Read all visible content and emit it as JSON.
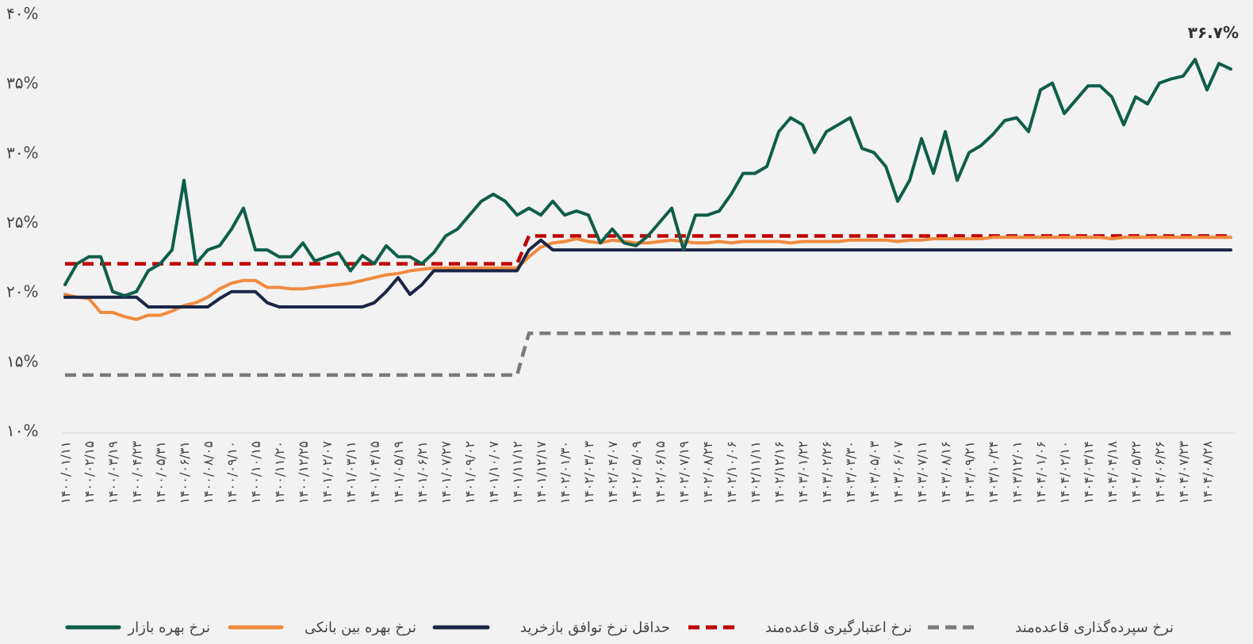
{
  "chart_data": {
    "type": "line",
    "annotation": "۳۶.۷%",
    "categories": [
      "۱۴۰۰/۰۱/۱۱",
      null,
      "۱۴۰۰/۰۲/۱۵",
      null,
      "۱۴۰۰/۰۳/۱۹",
      null,
      "۱۴۰۰/۰۴/۲۳",
      null,
      "۱۴۰۰/۰۵/۳۱",
      null,
      "۱۴۰۰/۰۶/۳۱",
      null,
      "۱۴۰۰/۰۸/۰۵",
      null,
      "۱۴۰۰/۰۹/۱۰",
      null,
      "۱۴۰۰/۱۰/۱۵",
      null,
      "۱۴۰۰/۱۱/۲۰",
      null,
      "۱۴۰۰/۱۲/۲۵",
      null,
      "۱۴۰۱/۰۲/۰۷",
      null,
      "۱۴۰۱/۰۳/۱۱",
      null,
      "۱۴۰۱/۰۴/۱۵",
      null,
      "۱۴۰۱/۰۵/۱۹",
      null,
      "۱۴۰۱/۰۶/۲۱",
      null,
      "۱۴۰۱/۰۷/۲۷",
      null,
      "۱۴۰۱/۰۹/۰۲",
      null,
      "۱۴۰۱/۱۰/۰۷",
      null,
      "۱۴۰۱/۱۱/۱۲",
      null,
      "۱۴۰۱/۱۲/۱۷",
      null,
      "۱۴۰۲/۰۱/۳۰",
      null,
      "۱۴۰۲/۰۳/۰۳",
      null,
      "۱۴۰۲/۰۴/۰۷",
      null,
      "۱۴۰۲/۰۵/۰۹",
      null,
      "۱۴۰۲/۰۶/۱۵",
      null,
      "۱۴۰۲/۰۷/۱۹",
      null,
      "۱۴۰۲/۰۸/۲۴",
      null,
      "۱۴۰۲/۱۰/۰۶",
      null,
      "۱۴۰۲/۱۱/۱۱",
      null,
      "۱۴۰۲/۱۲/۱۶",
      null,
      "۱۴۰۳/۰۱/۲۲",
      null,
      "۱۴۰۳/۰۲/۲۶",
      null,
      "۱۴۰۳/۰۳/۳۰",
      null,
      "۱۴۰۳/۰۵/۰۳",
      null,
      "۱۴۰۳/۰۶/۰۷",
      null,
      "۱۴۰۳/۰۷/۱۱",
      null,
      "۱۴۰۳/۰۸/۱۶",
      null,
      "۱۴۰۳/۰۹/۲۱",
      null,
      "۱۴۰۳/۱۰/۲۴",
      null,
      "۱۴۰۳/۱۲/۰۱",
      null,
      "۱۴۰۴/۰۱/۰۶",
      null,
      "۱۴۰۴/۰۲/۱۰",
      null,
      "۱۴۰۴/۰۳/۱۴",
      null,
      "۱۴۰۴/۰۴/۱۸",
      null,
      "۱۴۰۴/۰۵/۲۲",
      null,
      "۱۴۰۴/۰۶/۲۶",
      null,
      "۱۴۰۴/۰۷/۲۳",
      null,
      "۱۴۰۴/۰۸/۲۸",
      null,
      null
    ],
    "series": [
      {
        "name": "نرخ بهره بازار",
        "color": "#0e5e4a",
        "values": [
          20.5,
          22,
          22.5,
          22.5,
          20,
          19.7,
          20,
          21.5,
          22,
          23,
          28,
          22,
          23,
          23.3,
          24.5,
          26,
          23,
          23,
          22.5,
          22.5,
          23.5,
          22.2,
          22.5,
          22.8,
          21.5,
          22.6,
          22,
          23.3,
          22.5,
          22.5,
          22,
          22.8,
          24,
          24.5,
          25.5,
          26.5,
          27,
          26.5,
          25.5,
          26,
          25.5,
          26.5,
          25.5,
          25.8,
          25.5,
          23.5,
          24.5,
          23.5,
          23.3,
          24,
          25,
          26,
          23,
          25.5,
          25.5,
          25.8,
          27,
          28.5,
          28.5,
          29,
          31.5,
          32.5,
          32,
          30,
          31.5,
          32,
          32.5,
          30.3,
          30,
          29,
          26.5,
          28,
          31,
          28.5,
          31.5,
          28,
          30,
          30.5,
          31.3,
          32.3,
          32.5,
          31.5,
          34.5,
          35,
          32.8,
          33.8,
          34.8,
          34.8,
          34,
          32,
          34,
          33.5,
          35,
          35.3,
          35.5,
          36.7,
          34.5,
          36.4,
          36
        ]
      },
      {
        "name": "نرخ بهره بین بانکی",
        "color": "#f08a3e",
        "values": [
          19.8,
          19.6,
          19.5,
          18.5,
          18.5,
          18.2,
          18,
          18.3,
          18.3,
          18.6,
          19,
          19.2,
          19.6,
          20.2,
          20.6,
          20.8,
          20.8,
          20.3,
          20.3,
          20.2,
          20.2,
          20.3,
          20.4,
          20.5,
          20.6,
          20.8,
          21,
          21.2,
          21.3,
          21.5,
          21.6,
          21.7,
          21.7,
          21.7,
          21.7,
          21.7,
          21.7,
          21.7,
          21.7,
          22.5,
          23.2,
          23.5,
          23.6,
          23.8,
          23.6,
          23.5,
          23.7,
          23.6,
          23.5,
          23.5,
          23.6,
          23.7,
          23.6,
          23.5,
          23.5,
          23.6,
          23.5,
          23.6,
          23.6,
          23.6,
          23.6,
          23.5,
          23.6,
          23.6,
          23.6,
          23.6,
          23.7,
          23.7,
          23.7,
          23.7,
          23.6,
          23.7,
          23.7,
          23.8,
          23.8,
          23.8,
          23.8,
          23.8,
          23.9,
          23.9,
          23.9,
          23.9,
          23.9,
          23.9,
          23.9,
          23.9,
          23.9,
          23.9,
          23.8,
          23.9,
          23.9,
          23.9,
          23.9,
          23.9,
          23.9,
          23.9,
          23.9,
          23.9,
          23.9
        ]
      },
      {
        "name": "حداقل نرخ توافق بازخرید",
        "color": "#1b2545",
        "values": [
          19.6,
          19.6,
          19.6,
          19.6,
          19.6,
          19.6,
          19.6,
          18.9,
          18.9,
          18.9,
          18.9,
          18.9,
          18.9,
          19.5,
          20,
          20,
          20,
          19.2,
          18.9,
          18.9,
          18.9,
          18.9,
          18.9,
          18.9,
          18.9,
          18.9,
          19.2,
          20,
          21,
          19.8,
          20.5,
          21.5,
          21.5,
          21.5,
          21.5,
          21.5,
          21.5,
          21.5,
          21.5,
          23,
          23.7,
          23,
          23,
          23,
          23,
          23,
          23,
          23,
          23,
          23,
          23,
          23,
          23,
          23,
          23,
          23,
          23,
          23,
          23,
          23,
          23,
          23,
          23,
          23,
          23,
          23,
          23,
          23,
          23,
          23,
          23,
          23,
          23,
          23,
          23,
          23,
          23,
          23,
          23,
          23,
          23,
          23,
          23,
          23,
          23,
          23,
          23,
          23,
          23,
          23,
          23,
          23,
          23,
          23,
          23,
          23,
          23,
          23,
          23
        ]
      },
      {
        "name": "نرخ اعتبارگیری قاعده‌مند",
        "color": "#c00000",
        "dash": true,
        "values": [
          22,
          22,
          22,
          22,
          22,
          22,
          22,
          22,
          22,
          22,
          22,
          22,
          22,
          22,
          22,
          22,
          22,
          22,
          22,
          22,
          22,
          22,
          22,
          22,
          22,
          22,
          22,
          22,
          22,
          22,
          22,
          22,
          22,
          22,
          22,
          22,
          22,
          22,
          22,
          24,
          24,
          24,
          24,
          24,
          24,
          24,
          24,
          24,
          24,
          24,
          24,
          24,
          24,
          24,
          24,
          24,
          24,
          24,
          24,
          24,
          24,
          24,
          24,
          24,
          24,
          24,
          24,
          24,
          24,
          24,
          24,
          24,
          24,
          24,
          24,
          24,
          24,
          24,
          24,
          24,
          24,
          24,
          24,
          24,
          24,
          24,
          24,
          24,
          24,
          24,
          24,
          24,
          24,
          24,
          24,
          24,
          24,
          24,
          24
        ]
      },
      {
        "name": "نرخ سپرده‌گذاری قاعده‌مند",
        "color": "#7a7a7a",
        "dash": true,
        "values": [
          14,
          14,
          14,
          14,
          14,
          14,
          14,
          14,
          14,
          14,
          14,
          14,
          14,
          14,
          14,
          14,
          14,
          14,
          14,
          14,
          14,
          14,
          14,
          14,
          14,
          14,
          14,
          14,
          14,
          14,
          14,
          14,
          14,
          14,
          14,
          14,
          14,
          14,
          14,
          17,
          17,
          17,
          17,
          17,
          17,
          17,
          17,
          17,
          17,
          17,
          17,
          17,
          17,
          17,
          17,
          17,
          17,
          17,
          17,
          17,
          17,
          17,
          17,
          17,
          17,
          17,
          17,
          17,
          17,
          17,
          17,
          17,
          17,
          17,
          17,
          17,
          17,
          17,
          17,
          17,
          17,
          17,
          17,
          17,
          17,
          17,
          17,
          17,
          17,
          17,
          17,
          17,
          17,
          17,
          17,
          17,
          17,
          17,
          17
        ]
      }
    ],
    "ylim": [
      10,
      40
    ],
    "yticks": [
      {
        "value": 40,
        "label": "۴۰%"
      },
      {
        "value": 35,
        "label": "۳۵%"
      },
      {
        "value": 30,
        "label": "۳۰%"
      },
      {
        "value": 25,
        "label": "۲۵%"
      },
      {
        "value": 20,
        "label": "۲۰%"
      },
      {
        "value": 15,
        "label": "۱۵%"
      },
      {
        "value": 10,
        "label": "۱۰%"
      }
    ],
    "grid": false,
    "legend": "bottom"
  }
}
